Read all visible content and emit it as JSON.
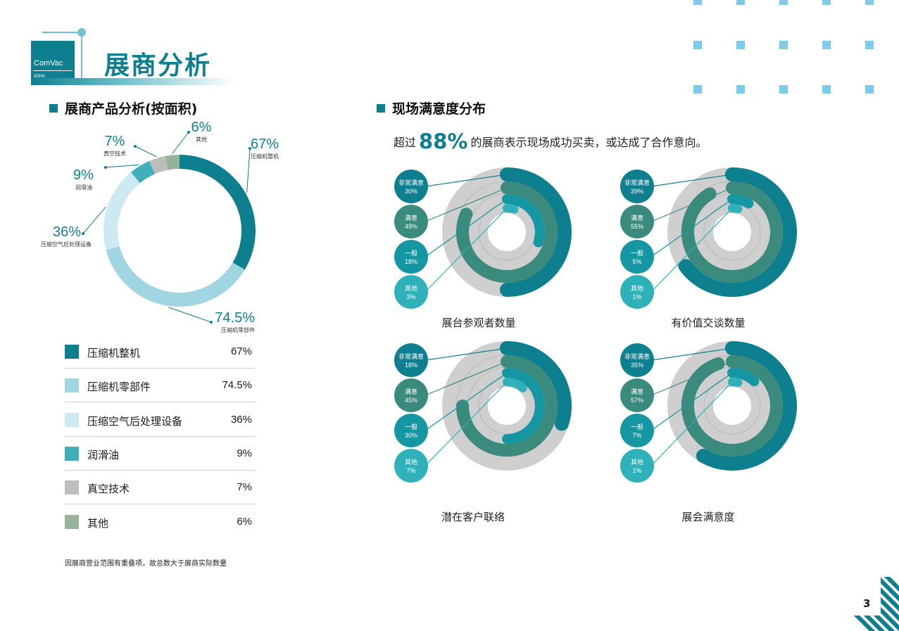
{
  "logo": {
    "line1": "ComVac",
    "line2": "ASIA"
  },
  "page_title": "展商分析",
  "left": {
    "section_title": "展商产品分析(按面积)",
    "callouts": [
      {
        "pct": "67%",
        "label": "压缩机整机"
      },
      {
        "pct": "74.5%",
        "label": "压缩机零部件"
      },
      {
        "pct": "36%",
        "label": "压缩空气后处理设备"
      },
      {
        "pct": "9%",
        "label": "润滑油"
      },
      {
        "pct": "7%",
        "label": "真空技术"
      },
      {
        "pct": "6%",
        "label": "其他"
      }
    ],
    "legend": [
      {
        "name": "压缩机整机",
        "value": "67%",
        "color": "#0e7f8e"
      },
      {
        "name": "压缩机零部件",
        "value": "74.5%",
        "color": "#9fd6e1"
      },
      {
        "name": "压缩空气后处理设备",
        "value": "36%",
        "color": "#cde9f1"
      },
      {
        "name": "润滑油",
        "value": "9%",
        "color": "#3fb0bb"
      },
      {
        "name": "真空技术",
        "value": "7%",
        "color": "#bdbdbd"
      },
      {
        "name": "其他",
        "value": "6%",
        "color": "#97b29a"
      }
    ],
    "footnote": "因展商营业范围有重叠项，故总数大于展商实际数量"
  },
  "right": {
    "section_title": "现场满意度分布",
    "intro_before": "超过",
    "intro_big": "88%",
    "intro_after": "的展商表示现场成功买卖，或达成了合作意向。"
  },
  "page_number": "3",
  "chart_data": [
    {
      "type": "pie",
      "title": "展商产品分析(按面积)",
      "categories": [
        "压缩机整机",
        "压缩机零部件",
        "压缩空气后处理设备",
        "润滑油",
        "真空技术",
        "其他"
      ],
      "values": [
        67,
        74.5,
        36,
        9,
        7,
        6
      ],
      "unit": "%",
      "colors": [
        "#0e7f8e",
        "#9fd6e1",
        "#cde9f1",
        "#3fb0bb",
        "#bdbdbd",
        "#97b29a"
      ],
      "donut": true
    },
    {
      "type": "radial-bar",
      "title": "展台参观者数量",
      "categories": [
        "非常满意",
        "满意",
        "一般",
        "其他"
      ],
      "values": [
        30,
        49,
        18,
        3
      ],
      "labels": [
        "30%",
        "49%",
        "18%",
        "3%"
      ],
      "unit": "%"
    },
    {
      "type": "radial-bar",
      "title": "有价值交谈数量",
      "categories": [
        "非常满意",
        "满意",
        "一般",
        "其他"
      ],
      "values": [
        39,
        55,
        5,
        1
      ],
      "labels": [
        "39%",
        "55%",
        "5%",
        "1%"
      ],
      "unit": "%"
    },
    {
      "type": "radial-bar",
      "title": "潜在客户联络",
      "categories": [
        "非常满意",
        "满意",
        "一般",
        "其他"
      ],
      "values": [
        18,
        45,
        30,
        7
      ],
      "labels": [
        "18%",
        "45%",
        "30%",
        "7%"
      ],
      "unit": "%"
    },
    {
      "type": "radial-bar",
      "title": "展会满意度",
      "categories": [
        "非常满意",
        "满意",
        "一般",
        "其他"
      ],
      "values": [
        35,
        57,
        7,
        1
      ],
      "labels": [
        "35%",
        "57%",
        "7%",
        "1%"
      ],
      "unit": "%"
    }
  ],
  "colors": {
    "ring_colors": [
      "#0e7f8e",
      "#3a8a7e",
      "#1497a3",
      "#2fb1ba"
    ],
    "bubble_colors": [
      "#0e7f8e",
      "#3a8a7e",
      "#1497a3",
      "#2fb1ba"
    ],
    "track": "#cfcfcf",
    "accent": "#0e7f8e",
    "deco_square": "#7ccbea"
  }
}
